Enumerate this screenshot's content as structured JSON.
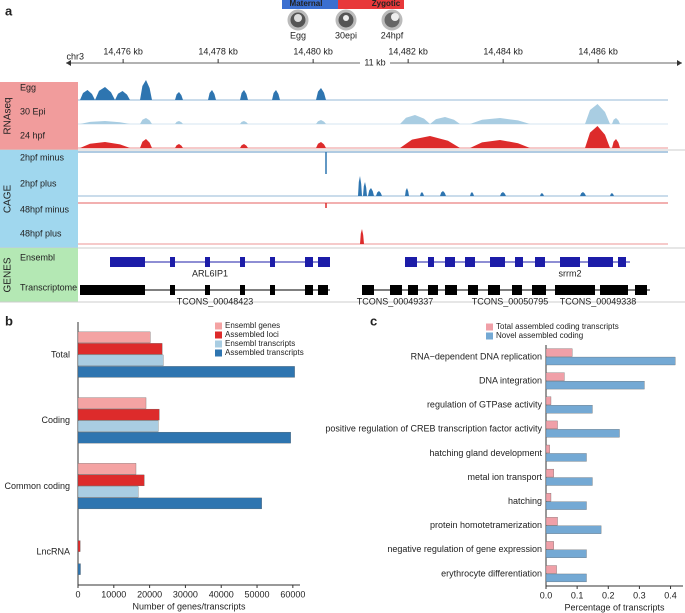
{
  "chart_data": [
    {
      "type": "genome-browser",
      "panel": "a",
      "stage_bar": [
        "Maternal",
        "Zygotic"
      ],
      "stages": [
        "Egg",
        "30epi",
        "24hpf"
      ],
      "chromosome": "chr3",
      "scale_bar": "11 kb",
      "xlim": [
        14475.05,
        14487.47
      ],
      "xticks": [
        {
          "value": 14476,
          "label": "14,476 kb"
        },
        {
          "value": 14478,
          "label": "14,478 kb"
        },
        {
          "value": 14480,
          "label": "14,480 kb"
        },
        {
          "value": 14482,
          "label": "14,482 kb"
        },
        {
          "value": 14484,
          "label": "14,484 kb"
        },
        {
          "value": 14486,
          "label": "14,486 kb"
        }
      ],
      "groups": [
        {
          "name": "RNAseq",
          "color": "#f19c9c",
          "tracks": [
            "Egg",
            "30 Epi",
            "24 hpf"
          ]
        },
        {
          "name": "CAGE",
          "color": "#a0d7ee",
          "tracks": [
            "2hpf minus",
            "2hpf plus",
            "48hpf minus",
            "48hpf plus"
          ]
        },
        {
          "name": "GENES",
          "color": "#b4e8b4",
          "tracks": [
            "Ensembl",
            "Transcriptome"
          ]
        }
      ],
      "genes": [
        "ARL6IP1",
        "srrm2"
      ],
      "transcripts": [
        "TCONS_00048423",
        "TCONS_00049337",
        "TCONS_00050795",
        "TCONS_00049338"
      ]
    },
    {
      "type": "hbar",
      "panel": "b",
      "categories": [
        "Total",
        "Coding",
        "Common coding",
        "LncRNA"
      ],
      "series": [
        {
          "name": "Ensembl genes",
          "color": "#f4a3a3",
          "values": [
            20200,
            19000,
            16200,
            0
          ]
        },
        {
          "name": "Assembled loci",
          "color": "#dd2b2b",
          "values": [
            23500,
            22700,
            18500,
            600
          ]
        },
        {
          "name": "Ensembl transcripts",
          "color": "#a9cde2",
          "values": [
            23800,
            22400,
            16800,
            0
          ]
        },
        {
          "name": "Assembled transcripts",
          "color": "#2e75b0",
          "values": [
            60500,
            59400,
            51300,
            700
          ]
        }
      ],
      "xlim": [
        0,
        62000
      ],
      "xticks": [
        0,
        10000,
        20000,
        30000,
        40000,
        50000,
        60000
      ],
      "xlabel": "Number of genes/transcripts",
      "legend": "upper right"
    },
    {
      "type": "hbar",
      "panel": "c",
      "categories": [
        "RNA−dependent DNA replication",
        "DNA integration",
        "regulation of GTPase activity",
        "positive regulation of CREB transcription factor activity",
        "hatching gland development",
        "metal ion transport",
        "hatching",
        "protein homotetramerization",
        "negative regulation of gene expression",
        "erythrocyte differentiation"
      ],
      "series": [
        {
          "name": "Total assembled coding transcripts",
          "color": "#f0a0a8",
          "values": [
            0.084,
            0.059,
            0.016,
            0.037,
            0.012,
            0.025,
            0.016,
            0.037,
            0.025,
            0.034
          ]
        },
        {
          "name": "Novel assembled coding",
          "color": "#74a9d4",
          "values": [
            0.415,
            0.316,
            0.149,
            0.236,
            0.13,
            0.149,
            0.13,
            0.177,
            0.13,
            0.13
          ]
        }
      ],
      "xlim": [
        0,
        0.44
      ],
      "xticks": [
        {
          "value": 0,
          "label": "0.0"
        },
        0.1,
        0.2,
        0.3,
        0.4
      ],
      "xlabel": "Percentage of transcripts",
      "legend": "top"
    }
  ]
}
